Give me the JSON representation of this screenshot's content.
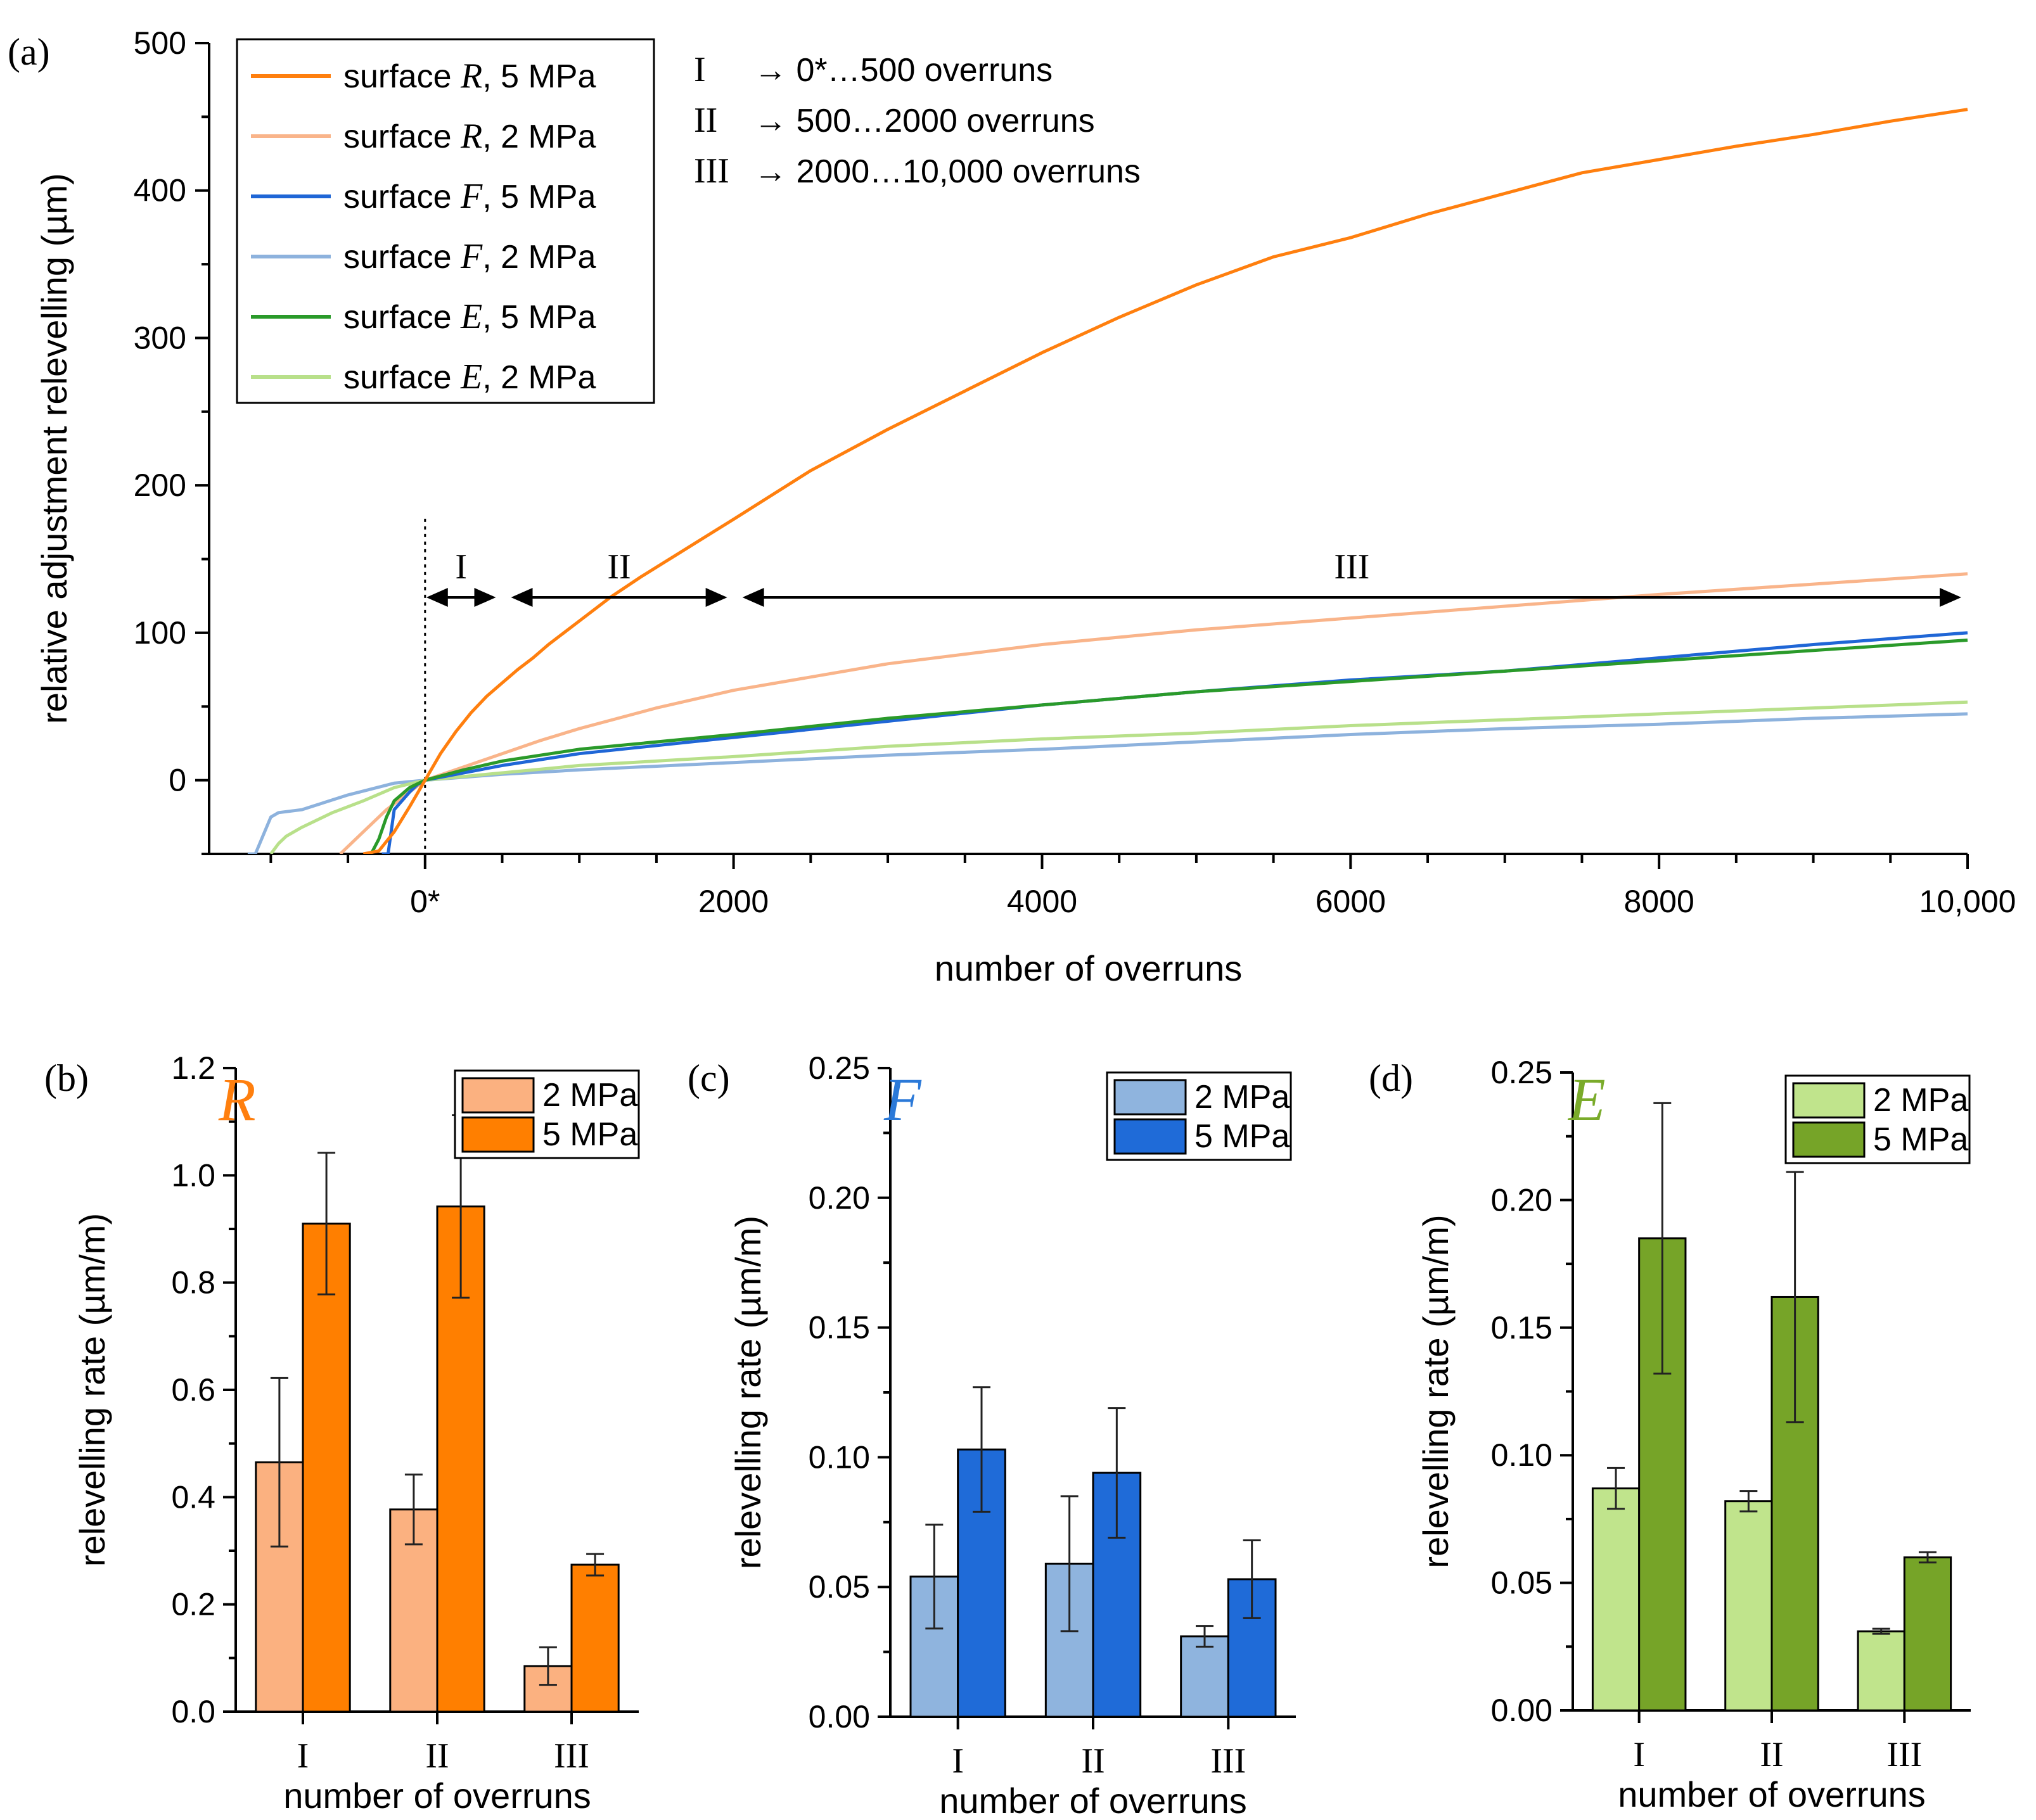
{
  "colors": {
    "R5": "#ff7f0e",
    "R2": "#f9b48a",
    "F5": "#1f66d6",
    "F2": "#8db2dd",
    "E5": "#2a9a2a",
    "E2": "#b8e08a",
    "R_bar2": "#fbb180",
    "R_bar5": "#ff7f00",
    "F_bar2": "#8fb4de",
    "F_bar5": "#1f6bd8",
    "E_bar2": "#c0e48c",
    "E_bar5": "#76a428",
    "R_title": "#ff7f0e",
    "F_title": "#2b79d8",
    "E_title": "#7aab2a"
  },
  "chart_data": [
    {
      "id": "a",
      "panel_label": "(a)",
      "type": "line",
      "xlabel": "number of overruns",
      "ylabel": "relative adjustment relevelling (µm)",
      "xlim": [
        -1400,
        10000
      ],
      "ylim": [
        -50,
        500
      ],
      "x_ticks": [
        {
          "v": 0,
          "label": "0*"
        },
        {
          "v": 2000,
          "label": "2000"
        },
        {
          "v": 4000,
          "label": "4000"
        },
        {
          "v": 6000,
          "label": "6000"
        },
        {
          "v": 8000,
          "label": "8000"
        },
        {
          "v": 10000,
          "label": "10,000"
        }
      ],
      "y_ticks": [
        {
          "v": 0,
          "label": "0"
        },
        {
          "v": 100,
          "label": "100"
        },
        {
          "v": 200,
          "label": "200"
        },
        {
          "v": 300,
          "label": "300"
        },
        {
          "v": 400,
          "label": "400"
        },
        {
          "v": 500,
          "label": "500"
        }
      ],
      "legend": [
        {
          "key": "R5",
          "pre": "surface ",
          "sym": "R",
          "post": ", 5 MPa"
        },
        {
          "key": "R2",
          "pre": "surface ",
          "sym": "R",
          "post": ", 2 MPa"
        },
        {
          "key": "F5",
          "pre": "surface ",
          "sym": "F",
          "post": ", 5 MPa"
        },
        {
          "key": "F2",
          "pre": "surface ",
          "sym": "F",
          "post": ", 2 MPa"
        },
        {
          "key": "E5",
          "pre": "surface ",
          "sym": "E",
          "post": ", 5 MPa"
        },
        {
          "key": "E2",
          "pre": "surface ",
          "sym": "E",
          "post": ", 2 MPa"
        }
      ],
      "phase_notes": [
        {
          "roman": "I",
          "text": "→ 0*…500 overruns"
        },
        {
          "roman": "II",
          "text": "→ 500…2000 overruns"
        },
        {
          "roman": "III",
          "text": "→ 2000…10,000 overruns"
        }
      ],
      "phases": [
        {
          "label": "I",
          "from": 0,
          "to": 500
        },
        {
          "label": "II",
          "from": 500,
          "to": 2000
        },
        {
          "label": "III",
          "from": 2000,
          "to": 10000
        }
      ],
      "phase_arrow_y": 124,
      "series": [
        {
          "key": "R5",
          "name": "surface R, 5 MPa",
          "x": [
            -400,
            -300,
            -200,
            -100,
            0,
            100,
            200,
            300,
            400,
            500,
            600,
            700,
            800,
            1000,
            1200,
            1400,
            1600,
            1800,
            2000,
            2500,
            3000,
            3500,
            4000,
            4500,
            5000,
            5500,
            6000,
            6500,
            7000,
            7500,
            8000,
            8500,
            9000,
            9500,
            10000
          ],
          "y": [
            -50,
            -48,
            -35,
            -18,
            0,
            18,
            33,
            46,
            57,
            66,
            75,
            83,
            92,
            108,
            124,
            138,
            151,
            164,
            177,
            210,
            238,
            264,
            290,
            314,
            336,
            355,
            368,
            384,
            398,
            412,
            421,
            430,
            438,
            447,
            455
          ]
        },
        {
          "key": "R2",
          "name": "surface R, 2 MPa",
          "x": [
            -550,
            -400,
            -250,
            -100,
            0,
            250,
            500,
            750,
            1000,
            1500,
            2000,
            3000,
            4000,
            5000,
            6000,
            7000,
            8000,
            9000,
            10000
          ],
          "y": [
            -50,
            -35,
            -20,
            -8,
            0,
            9,
            18,
            27,
            35,
            49,
            61,
            79,
            92,
            102,
            110,
            118,
            126,
            133,
            140
          ]
        },
        {
          "key": "F5",
          "name": "surface F, 5 MPa",
          "x": [
            -280,
            -240,
            -200,
            -150,
            -100,
            -50,
            0,
            250,
            500,
            1000,
            2000,
            3000,
            4000,
            5000,
            6000,
            7000,
            8000,
            9000,
            10000
          ],
          "y": [
            -50,
            -50,
            -20,
            -14,
            -8,
            -3,
            0,
            5,
            10,
            18,
            29,
            40,
            51,
            60,
            68,
            74,
            83,
            92,
            100
          ]
        },
        {
          "key": "F2",
          "name": "surface F, 2 MPa",
          "x": [
            -1150,
            -1100,
            -1000,
            -950,
            -800,
            -500,
            -200,
            0,
            500,
            1000,
            2000,
            3000,
            4000,
            5000,
            6000,
            7000,
            8000,
            9000,
            10000
          ],
          "y": [
            -50,
            -50,
            -25,
            -22,
            -20,
            -10,
            -2,
            0,
            4,
            7,
            12,
            17,
            21,
            26,
            31,
            35,
            38,
            42,
            45
          ]
        },
        {
          "key": "E5",
          "name": "surface E, 5 MPa",
          "x": [
            -350,
            -300,
            -250,
            -200,
            -100,
            0,
            250,
            500,
            1000,
            2000,
            3000,
            4000,
            5000,
            6000,
            7000,
            8000,
            9000,
            10000
          ],
          "y": [
            -50,
            -40,
            -25,
            -14,
            -5,
            0,
            7,
            13,
            21,
            31,
            42,
            51,
            60,
            67,
            74,
            81,
            88,
            95
          ]
        },
        {
          "key": "E2",
          "name": "surface E, 2 MPa",
          "x": [
            -1000,
            -950,
            -900,
            -800,
            -600,
            -400,
            -200,
            0,
            500,
            1000,
            2000,
            3000,
            4000,
            5000,
            6000,
            7000,
            8000,
            9000,
            10000
          ],
          "y": [
            -50,
            -43,
            -38,
            -32,
            -22,
            -14,
            -5,
            0,
            5,
            10,
            16,
            23,
            28,
            32,
            37,
            41,
            45,
            49,
            53
          ]
        }
      ]
    },
    {
      "id": "b",
      "panel_label": "(b)",
      "title": "R",
      "type": "bar",
      "categories": [
        "I",
        "II",
        "III"
      ],
      "xlabel": "number of overruns",
      "ylabel": "relevelling rate (µm/m)",
      "ylim": [
        0,
        1.2
      ],
      "y_ticks": [
        "0.0",
        "0.2",
        "0.4",
        "0.6",
        "0.8",
        "1.0",
        "1.2"
      ],
      "series": [
        {
          "name": "2 MPa",
          "color_key": "R_bar2",
          "values": [
            0.465,
            0.377,
            0.085
          ],
          "errors": [
            0.157,
            0.065,
            0.035
          ]
        },
        {
          "name": "5 MPa",
          "color_key": "R_bar5",
          "values": [
            0.91,
            0.942,
            0.274
          ],
          "errors": [
            0.132,
            0.17,
            0.02
          ]
        }
      ]
    },
    {
      "id": "c",
      "panel_label": "(c)",
      "title": "F",
      "type": "bar",
      "categories": [
        "I",
        "II",
        "III"
      ],
      "xlabel": "number of overruns",
      "ylabel": "relevelling rate (µm/m)",
      "ylim": [
        0,
        0.25
      ],
      "y_ticks": [
        "0.00",
        "0.05",
        "0.10",
        "0.15",
        "0.20",
        "0.25"
      ],
      "series": [
        {
          "name": "2 MPa",
          "color_key": "F_bar2",
          "values": [
            0.054,
            0.059,
            0.031
          ],
          "errors": [
            0.02,
            0.026,
            0.004
          ]
        },
        {
          "name": "5 MPa",
          "color_key": "F_bar5",
          "values": [
            0.103,
            0.094,
            0.053
          ],
          "errors": [
            0.024,
            0.025,
            0.015
          ]
        }
      ]
    },
    {
      "id": "d",
      "panel_label": "(d)",
      "title": "E",
      "type": "bar",
      "categories": [
        "I",
        "II",
        "III"
      ],
      "xlabel": "number of overruns",
      "ylabel": "relevelling rate (µm/m)",
      "ylim": [
        0,
        0.25
      ],
      "y_ticks": [
        "0.00",
        "0.05",
        "0.10",
        "0.15",
        "0.20",
        "0.25"
      ],
      "series": [
        {
          "name": "2 MPa",
          "color_key": "E_bar2",
          "values": [
            0.087,
            0.082,
            0.031
          ],
          "errors": [
            0.008,
            0.004,
            0.001
          ]
        },
        {
          "name": "5 MPa",
          "color_key": "E_bar5",
          "values": [
            0.185,
            0.162,
            0.06
          ],
          "errors": [
            0.053,
            0.049,
            0.002
          ]
        }
      ]
    }
  ]
}
